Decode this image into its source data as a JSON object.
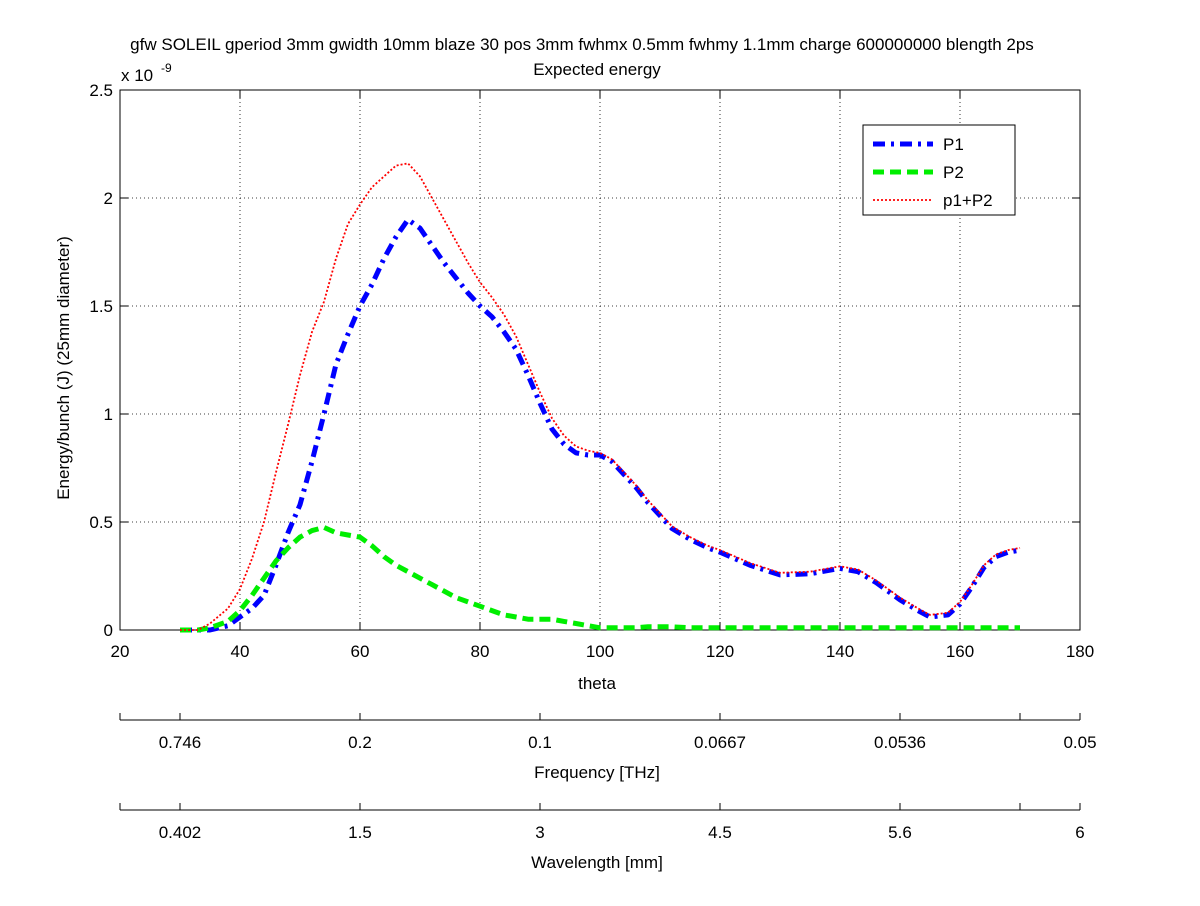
{
  "chart_data": {
    "type": "line",
    "title": "gfw SOLEIL gperiod 3mm gwidth 10mm blaze 30 pos 3mm fwhmx 0.5mm fwhmy 1.1mm charge 600000000 blength 2ps",
    "subtitle": "Expected energy",
    "xlabel": "theta",
    "ylabel": "Energy/bunch (J) (25mm diameter)",
    "y_exponent_label": "x 10",
    "y_exponent": "-9",
    "xlim": [
      20,
      180
    ],
    "ylim": [
      0,
      2.5
    ],
    "x_ticks": [
      "20",
      "40",
      "60",
      "80",
      "100",
      "120",
      "140",
      "160",
      "180"
    ],
    "y_ticks": [
      "0",
      "0.5",
      "1",
      "1.5",
      "2",
      "2.5"
    ],
    "grid": true,
    "legend_position": "top-right",
    "colors": {
      "P1": "#0000ff",
      "P2": "#00ee00",
      "sum": "#ff0000"
    },
    "x": [
      30,
      33,
      35,
      38,
      40,
      42,
      44,
      46,
      48,
      50,
      52,
      54,
      56,
      58,
      60,
      62,
      64,
      66,
      68,
      70,
      72,
      74,
      76,
      78,
      80,
      82,
      84,
      86,
      88,
      90,
      92,
      94,
      96,
      98,
      100,
      102,
      104,
      106,
      108,
      110,
      112,
      115,
      118,
      120,
      125,
      130,
      135,
      140,
      143,
      146,
      150,
      153,
      155,
      158,
      160,
      162,
      164,
      166,
      168,
      170
    ],
    "series": [
      {
        "name": "P1",
        "style": "dashdot",
        "values": [
          0.0,
          0.0,
          0.0,
          0.02,
          0.06,
          0.1,
          0.16,
          0.3,
          0.45,
          0.58,
          0.78,
          1.0,
          1.23,
          1.37,
          1.5,
          1.6,
          1.72,
          1.82,
          1.9,
          1.86,
          1.78,
          1.7,
          1.63,
          1.56,
          1.5,
          1.45,
          1.38,
          1.3,
          1.18,
          1.05,
          0.93,
          0.86,
          0.82,
          0.81,
          0.81,
          0.78,
          0.72,
          0.66,
          0.59,
          0.53,
          0.47,
          0.42,
          0.38,
          0.36,
          0.3,
          0.255,
          0.26,
          0.285,
          0.27,
          0.22,
          0.14,
          0.09,
          0.06,
          0.07,
          0.12,
          0.2,
          0.29,
          0.34,
          0.36,
          0.37
        ]
      },
      {
        "name": "P2",
        "style": "dashed",
        "values": [
          0.0,
          0.0,
          0.01,
          0.04,
          0.09,
          0.16,
          0.24,
          0.32,
          0.38,
          0.43,
          0.46,
          0.475,
          0.45,
          0.44,
          0.43,
          0.39,
          0.34,
          0.3,
          0.27,
          0.24,
          0.21,
          0.18,
          0.15,
          0.13,
          0.11,
          0.09,
          0.07,
          0.06,
          0.05,
          0.05,
          0.05,
          0.04,
          0.03,
          0.02,
          0.01,
          0.01,
          0.01,
          0.01,
          0.015,
          0.015,
          0.015,
          0.01,
          0.01,
          0.01,
          0.01,
          0.01,
          0.01,
          0.01,
          0.01,
          0.01,
          0.01,
          0.01,
          0.01,
          0.01,
          0.01,
          0.01,
          0.01,
          0.01,
          0.01,
          0.01
        ]
      },
      {
        "name": "p1+P2",
        "style": "dotted",
        "values": [
          0.0,
          0.0,
          0.03,
          0.1,
          0.19,
          0.33,
          0.5,
          0.73,
          0.95,
          1.18,
          1.38,
          1.52,
          1.72,
          1.88,
          1.97,
          2.05,
          2.1,
          2.15,
          2.16,
          2.1,
          2.0,
          1.9,
          1.8,
          1.7,
          1.61,
          1.54,
          1.46,
          1.36,
          1.23,
          1.1,
          0.98,
          0.9,
          0.85,
          0.83,
          0.82,
          0.79,
          0.73,
          0.67,
          0.6,
          0.54,
          0.48,
          0.43,
          0.39,
          0.37,
          0.31,
          0.265,
          0.27,
          0.295,
          0.28,
          0.23,
          0.15,
          0.1,
          0.07,
          0.08,
          0.13,
          0.21,
          0.3,
          0.35,
          0.37,
          0.38
        ]
      }
    ],
    "secondary_axes": [
      {
        "label": "Frequency [THz]",
        "ticks": [
          "0.746",
          "0.2",
          "0.1",
          "0.0667",
          "0.0536",
          "0.05"
        ]
      },
      {
        "label": "Wavelength [mm]",
        "ticks": [
          "0.402",
          "1.5",
          "3",
          "4.5",
          "5.6",
          "6"
        ]
      }
    ]
  }
}
